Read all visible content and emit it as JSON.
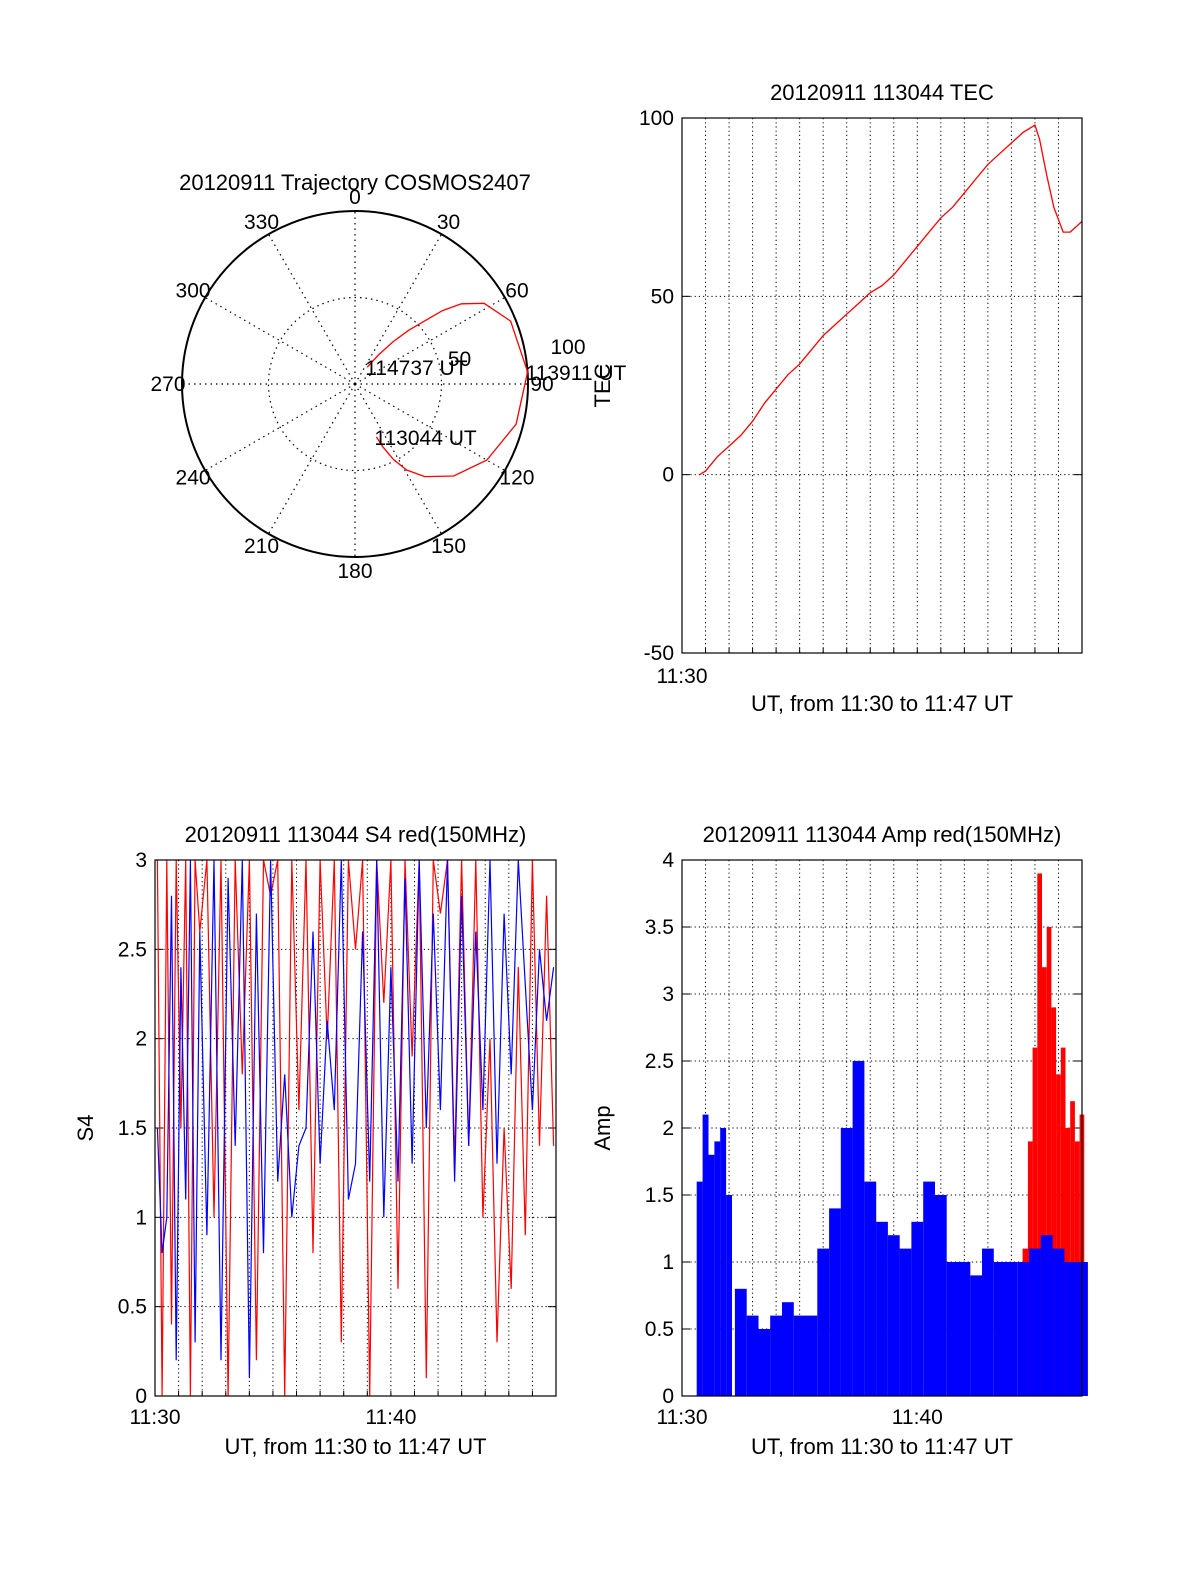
{
  "colors": {
    "red": "#ff0000",
    "blue": "#0000ff",
    "axis": "#000000",
    "grid": "#000000"
  },
  "chart_data": [
    {
      "type": "polar",
      "title": "20120911 Trajectory COSMOS2407",
      "azimuth_labels": [
        "0",
        "30",
        "60",
        "90",
        "120",
        "150",
        "180",
        "210",
        "240",
        "270",
        "300",
        "330"
      ],
      "radial_labels": [
        "50",
        "100"
      ],
      "series": [
        {
          "color": "#ff0000",
          "points": [
            [
              36,
              12
            ],
            [
              39,
              22
            ],
            [
              42,
              33
            ],
            [
              45,
              44
            ],
            [
              48,
              55
            ],
            [
              50,
              66
            ],
            [
              53,
              77
            ],
            [
              58,
              88
            ],
            [
              68,
              97
            ],
            [
              86,
              100
            ],
            [
              104,
              96
            ],
            [
              120,
              88
            ],
            [
              133,
              78
            ],
            [
              143,
              67
            ],
            [
              149,
              58
            ],
            [
              153,
              49
            ],
            [
              156,
              40
            ],
            [
              158,
              33
            ]
          ]
        }
      ],
      "annotations": [
        {
          "text": "114737 UT",
          "azimuth": 36,
          "zenith": 12
        },
        {
          "text": "113911 UT",
          "azimuth": 86,
          "zenith": 100
        },
        {
          "text": "113044 UT",
          "azimuth": 158,
          "zenith": 33
        }
      ]
    },
    {
      "type": "line",
      "title": "20120911 113044 TEC",
      "xlabel": "UT, from 11:30 to 11:47 UT",
      "ylabel": "TEC",
      "xlim": [
        0,
        17
      ],
      "ylim": [
        -50,
        100
      ],
      "yticks": [
        "100",
        "50",
        "0",
        "-50"
      ],
      "xtick_labels": [
        {
          "x": 0,
          "label": "11:30"
        }
      ],
      "series": [
        {
          "color": "#ff0000",
          "x": [
            0.75,
            1,
            1.5,
            2,
            2.5,
            3,
            3.5,
            4,
            4.5,
            5,
            5.5,
            6,
            6.5,
            7,
            7.5,
            8,
            8.5,
            9,
            9.5,
            10,
            10.5,
            11,
            11.5,
            12,
            12.5,
            13,
            13.5,
            14,
            14.5,
            15,
            15.2,
            15.5,
            15.8,
            16.2,
            16.5,
            17
          ],
          "y": [
            0,
            1,
            5,
            8,
            11,
            15,
            20,
            24,
            28,
            31,
            35,
            39,
            42,
            45,
            48,
            51,
            53,
            56,
            60,
            64,
            68,
            72,
            75,
            79,
            83,
            87,
            90,
            93,
            96,
            98,
            94,
            84,
            75,
            68,
            68,
            71
          ]
        }
      ]
    },
    {
      "type": "line",
      "title": "20120911 113044 S4 red(150MHz)",
      "xlabel": "UT, from 11:30 to 11:47 UT",
      "ylabel": "S4",
      "xlim": [
        0,
        17
      ],
      "ylim": [
        0,
        3
      ],
      "yticks": [
        "3",
        "2.5",
        "2",
        "1.5",
        "1",
        "0.5",
        "0"
      ],
      "xtick_labels": [
        {
          "x": 0,
          "label": "11:30"
        },
        {
          "x": 10,
          "label": "11:40"
        }
      ],
      "series": [
        {
          "color": "#ff0000",
          "x": [
            0.1,
            0.3,
            0.5,
            0.7,
            0.9,
            1.1,
            1.3,
            1.5,
            1.7,
            1.9,
            2.2,
            2.5,
            2.8,
            3.1,
            3.4,
            3.7,
            4.0,
            4.3,
            4.6,
            4.9,
            5.2,
            5.5,
            5.8,
            6.1,
            6.4,
            6.7,
            7.0,
            7.3,
            7.6,
            7.9,
            8.2,
            8.5,
            8.8,
            9.1,
            9.4,
            9.7,
            10.0,
            10.3,
            10.6,
            10.9,
            11.2,
            11.5,
            11.8,
            12.1,
            12.4,
            12.7,
            13.0,
            13.3,
            13.6,
            13.9,
            14.2,
            14.5,
            14.8,
            15.1,
            15.4,
            15.7,
            16.0,
            16.3,
            16.6,
            16.9
          ],
          "y": [
            3,
            0,
            3,
            0.4,
            3,
            1.5,
            3,
            0,
            3,
            2.6,
            3,
            1.0,
            3,
            0,
            3,
            1.8,
            3,
            0.2,
            3,
            2.8,
            3,
            0,
            3,
            1.6,
            3,
            0.8,
            3,
            2.0,
            3,
            0.3,
            3,
            2.5,
            3,
            0,
            3,
            2.2,
            3,
            0.6,
            3,
            1.9,
            3,
            0.1,
            3,
            2.7,
            3,
            1.3,
            3,
            1.4,
            3,
            1.0,
            2.0,
            0.3,
            1.5,
            0.6,
            2.4,
            0.9,
            3,
            1.4,
            2.8,
            1.4
          ]
        },
        {
          "color": "#0000ff",
          "x": [
            0.1,
            0.3,
            0.5,
            0.7,
            0.9,
            1.1,
            1.3,
            1.5,
            1.7,
            1.9,
            2.2,
            2.5,
            2.8,
            3.1,
            3.4,
            3.7,
            4.0,
            4.3,
            4.6,
            4.9,
            5.2,
            5.5,
            5.8,
            6.1,
            6.4,
            6.7,
            7.0,
            7.3,
            7.6,
            7.9,
            8.2,
            8.5,
            8.8,
            9.1,
            9.4,
            9.7,
            10.0,
            10.3,
            10.6,
            10.9,
            11.2,
            11.5,
            11.8,
            12.1,
            12.4,
            12.7,
            13.0,
            13.3,
            13.6,
            13.9,
            14.2,
            14.5,
            14.8,
            15.1,
            15.4,
            15.7,
            16.0,
            16.3,
            16.6,
            16.9
          ],
          "y": [
            1.5,
            0.8,
            1.0,
            2.8,
            0.2,
            2.4,
            1.1,
            3,
            0.3,
            2.6,
            0.9,
            3,
            0.2,
            2.9,
            1.4,
            3,
            0.1,
            2.7,
            0.8,
            3,
            1.2,
            1.8,
            1.0,
            1.4,
            1.5,
            2.6,
            1.3,
            2.1,
            1.6,
            3,
            1.1,
            1.3,
            2.6,
            1.2,
            3,
            1.0,
            2.4,
            1.2,
            2.9,
            1.3,
            3,
            1.5,
            2.7,
            1.6,
            3,
            1.2,
            2.8,
            1.4,
            2.6,
            1.6,
            3,
            1.3,
            2.7,
            1.8,
            3,
            2.3,
            1.6,
            2.5,
            2.1,
            2.4
          ]
        }
      ]
    },
    {
      "type": "bar",
      "title": "20120911 113044 Amp red(150MHz)",
      "xlabel": "UT, from 11:30 to 11:47 UT",
      "ylabel": "Amp",
      "xlim": [
        0,
        17
      ],
      "ylim": [
        0,
        4
      ],
      "yticks": [
        "4",
        "3.5",
        "3",
        "2.5",
        "2",
        "1.5",
        "1",
        "0.5",
        "0"
      ],
      "xtick_labels": [
        {
          "x": 0,
          "label": "11:30"
        },
        {
          "x": 10,
          "label": "11:40"
        }
      ],
      "series": [
        {
          "color": "#ff0000",
          "x": [
            14.6,
            14.8,
            15.0,
            15.2,
            15.4,
            15.6,
            15.8,
            16.0,
            16.2,
            16.4,
            16.6,
            16.8,
            17.0
          ],
          "y": [
            1.1,
            1.9,
            2.6,
            3.9,
            3.2,
            3.5,
            2.9,
            2.4,
            2.6,
            2.0,
            2.2,
            1.9,
            2.1
          ]
        },
        {
          "color": "#0000ff",
          "x": [
            0.75,
            1.0,
            1.25,
            1.5,
            1.75,
            2.0,
            2.5,
            3.0,
            3.5,
            4.0,
            4.5,
            5.0,
            5.5,
            6.0,
            6.5,
            7.0,
            7.5,
            8.0,
            8.5,
            9.0,
            9.5,
            10.0,
            10.5,
            11.0,
            11.5,
            12.0,
            12.5,
            13.0,
            13.5,
            14.0,
            14.5,
            15.0,
            15.5,
            16.0,
            16.5,
            17.0
          ],
          "y": [
            1.6,
            2.1,
            1.8,
            1.9,
            2.0,
            1.5,
            0.8,
            0.6,
            0.5,
            0.6,
            0.7,
            0.6,
            0.6,
            1.1,
            1.4,
            2.0,
            2.5,
            1.6,
            1.3,
            1.2,
            1.1,
            1.3,
            1.6,
            1.5,
            1.0,
            1.0,
            0.9,
            1.1,
            1.0,
            1.0,
            1.0,
            1.1,
            1.2,
            1.1,
            1.0,
            1.0
          ]
        }
      ]
    }
  ]
}
